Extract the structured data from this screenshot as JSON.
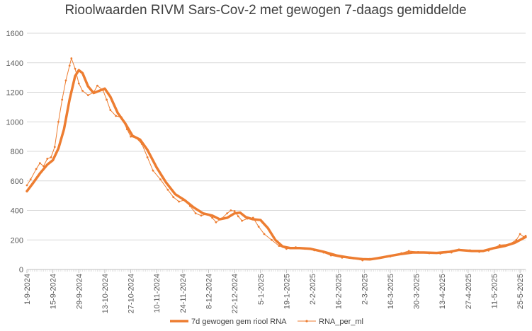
{
  "chart_data": {
    "type": "line",
    "title": "Rioolwaarden RIVM Sars-Cov-2 met gewogen 7-daags gemiddelde",
    "xlabel": "",
    "ylabel": "",
    "ylim": [
      0,
      1600
    ],
    "yticks": [
      "0",
      "200",
      "400",
      "600",
      "800",
      "1000",
      "1200",
      "1400",
      "1600"
    ],
    "xticks": [
      "1-9-2024",
      "15-9-2024",
      "29-9-2024",
      "13-10-2024",
      "27-10-2024",
      "10-11-2024",
      "24-11-2024",
      "8-12-2024",
      "22-12-2024",
      "5-1-2025",
      "19-1-2025",
      "2-2-2025",
      "16-2-2025",
      "2-3-2025",
      "16-3-2025",
      "30-3-2025",
      "13-4-2025",
      "27-4-2025",
      "11-5-2025",
      "25-5-2025"
    ],
    "x_range": [
      "2024-09-01",
      "2025-05-28"
    ],
    "grid": true,
    "legend": "bottom",
    "series": [
      {
        "name": "7d gewogen gem riool RNA",
        "color": "#ED7D31",
        "style": "thick-line",
        "points": [
          [
            "2024-09-01",
            530
          ],
          [
            "2024-09-04",
            580
          ],
          [
            "2024-09-08",
            650
          ],
          [
            "2024-09-12",
            710
          ],
          [
            "2024-09-15",
            740
          ],
          [
            "2024-09-18",
            820
          ],
          [
            "2024-09-21",
            950
          ],
          [
            "2024-09-24",
            1150
          ],
          [
            "2024-09-27",
            1310
          ],
          [
            "2024-09-29",
            1350
          ],
          [
            "2024-10-01",
            1330
          ],
          [
            "2024-10-04",
            1240
          ],
          [
            "2024-10-07",
            1195
          ],
          [
            "2024-10-10",
            1210
          ],
          [
            "2024-10-13",
            1225
          ],
          [
            "2024-10-16",
            1170
          ],
          [
            "2024-10-20",
            1060
          ],
          [
            "2024-10-24",
            990
          ],
          [
            "2024-10-28",
            905
          ],
          [
            "2024-11-01",
            880
          ],
          [
            "2024-11-05",
            810
          ],
          [
            "2024-11-10",
            690
          ],
          [
            "2024-11-15",
            590
          ],
          [
            "2024-11-20",
            510
          ],
          [
            "2024-11-25",
            470
          ],
          [
            "2024-11-30",
            420
          ],
          [
            "2024-12-05",
            380
          ],
          [
            "2024-12-10",
            365
          ],
          [
            "2024-12-14",
            340
          ],
          [
            "2024-12-18",
            350
          ],
          [
            "2024-12-22",
            380
          ],
          [
            "2024-12-25",
            385
          ],
          [
            "2024-12-28",
            355
          ],
          [
            "2025-01-01",
            340
          ],
          [
            "2025-01-05",
            335
          ],
          [
            "2025-01-09",
            280
          ],
          [
            "2025-01-13",
            200
          ],
          [
            "2025-01-17",
            155
          ],
          [
            "2025-01-21",
            145
          ],
          [
            "2025-01-26",
            145
          ],
          [
            "2025-02-01",
            140
          ],
          [
            "2025-02-08",
            120
          ],
          [
            "2025-02-15",
            95
          ],
          [
            "2025-02-22",
            80
          ],
          [
            "2025-03-01",
            70
          ],
          [
            "2025-03-05",
            68
          ],
          [
            "2025-03-10",
            78
          ],
          [
            "2025-03-16",
            92
          ],
          [
            "2025-03-22",
            105
          ],
          [
            "2025-03-28",
            115
          ],
          [
            "2025-04-03",
            115
          ],
          [
            "2025-04-10",
            112
          ],
          [
            "2025-04-17",
            120
          ],
          [
            "2025-04-22",
            132
          ],
          [
            "2025-04-29",
            125
          ],
          [
            "2025-05-05",
            125
          ],
          [
            "2025-05-11",
            145
          ],
          [
            "2025-05-17",
            160
          ],
          [
            "2025-05-22",
            180
          ],
          [
            "2025-05-28",
            220
          ]
        ]
      },
      {
        "name": "RNA_per_ml",
        "color": "#ED7D31",
        "style": "thin-line-markers",
        "points": [
          [
            "2024-09-01",
            570
          ],
          [
            "2024-09-03",
            610
          ],
          [
            "2024-09-06",
            680
          ],
          [
            "2024-09-08",
            720
          ],
          [
            "2024-09-10",
            700
          ],
          [
            "2024-09-12",
            750
          ],
          [
            "2024-09-14",
            760
          ],
          [
            "2024-09-16",
            830
          ],
          [
            "2024-09-18",
            1000
          ],
          [
            "2024-09-20",
            1150
          ],
          [
            "2024-09-22",
            1280
          ],
          [
            "2024-09-24",
            1380
          ],
          [
            "2024-09-25",
            1430
          ],
          [
            "2024-09-27",
            1360
          ],
          [
            "2024-09-29",
            1260
          ],
          [
            "2024-10-01",
            1210
          ],
          [
            "2024-10-04",
            1180
          ],
          [
            "2024-10-07",
            1200
          ],
          [
            "2024-10-09",
            1245
          ],
          [
            "2024-10-12",
            1215
          ],
          [
            "2024-10-14",
            1150
          ],
          [
            "2024-10-16",
            1080
          ],
          [
            "2024-10-19",
            1040
          ],
          [
            "2024-10-22",
            1030
          ],
          [
            "2024-10-25",
            950
          ],
          [
            "2024-10-27",
            900
          ],
          [
            "2024-10-30",
            890
          ],
          [
            "2024-11-02",
            850
          ],
          [
            "2024-11-05",
            760
          ],
          [
            "2024-11-08",
            670
          ],
          [
            "2024-11-12",
            610
          ],
          [
            "2024-11-16",
            540
          ],
          [
            "2024-11-19",
            490
          ],
          [
            "2024-11-22",
            460
          ],
          [
            "2024-11-25",
            470
          ],
          [
            "2024-11-28",
            430
          ],
          [
            "2024-12-01",
            380
          ],
          [
            "2024-12-04",
            365
          ],
          [
            "2024-12-07",
            375
          ],
          [
            "2024-12-10",
            350
          ],
          [
            "2024-12-12",
            320
          ],
          [
            "2024-12-15",
            345
          ],
          [
            "2024-12-18",
            380
          ],
          [
            "2024-12-20",
            400
          ],
          [
            "2024-12-22",
            395
          ],
          [
            "2024-12-24",
            360
          ],
          [
            "2024-12-26",
            330
          ],
          [
            "2024-12-29",
            345
          ],
          [
            "2025-01-01",
            350
          ],
          [
            "2025-01-04",
            290
          ],
          [
            "2025-01-07",
            240
          ],
          [
            "2025-01-11",
            200
          ],
          [
            "2025-01-15",
            160
          ],
          [
            "2025-01-19",
            140
          ],
          [
            "2025-01-24",
            150
          ],
          [
            "2025-01-29",
            140
          ],
          [
            "2025-02-03",
            130
          ],
          [
            "2025-02-08",
            115
          ],
          [
            "2025-02-12",
            95
          ],
          [
            "2025-02-18",
            80
          ],
          [
            "2025-02-24",
            75
          ],
          [
            "2025-03-01",
            62
          ],
          [
            "2025-03-05",
            72
          ],
          [
            "2025-03-10",
            80
          ],
          [
            "2025-03-16",
            88
          ],
          [
            "2025-03-22",
            110
          ],
          [
            "2025-03-26",
            125
          ],
          [
            "2025-03-31",
            118
          ],
          [
            "2025-04-06",
            110
          ],
          [
            "2025-04-12",
            108
          ],
          [
            "2025-04-18",
            115
          ],
          [
            "2025-04-22",
            135
          ],
          [
            "2025-04-28",
            130
          ],
          [
            "2025-05-03",
            120
          ],
          [
            "2025-05-08",
            128
          ],
          [
            "2025-05-14",
            165
          ],
          [
            "2025-05-19",
            170
          ],
          [
            "2025-05-23",
            200
          ],
          [
            "2025-05-25",
            240
          ],
          [
            "2025-05-27",
            220
          ],
          [
            "2025-05-28",
            228
          ]
        ]
      }
    ]
  }
}
